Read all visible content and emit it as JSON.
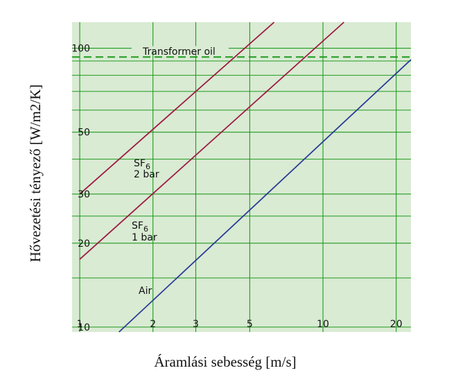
{
  "chart_data": {
    "type": "line",
    "xlabel": "Áramlási sebesség [m/s]",
    "ylabel": "Hővezetési tényező [W/m2/K]",
    "x_scale": "log",
    "y_scale": "log",
    "xlim": [
      0.93,
      23
    ],
    "ylim": [
      9.6,
      124
    ],
    "x_ticks": [
      1,
      2,
      3,
      5,
      10,
      20
    ],
    "x_tick_labels": [
      "1",
      "2",
      "3",
      "5",
      "10",
      "20"
    ],
    "y_ticks": [
      10,
      20,
      30,
      50,
      100
    ],
    "y_tick_labels": [
      "10",
      "20",
      "30",
      "50",
      "100"
    ],
    "grid": true,
    "background_color": "#d9ebd3",
    "grid_color": "#1f9a1f",
    "series": [
      {
        "id": "sf6_2bar",
        "label": {
          "base": "SF",
          "sub": "6",
          "pressure": "2 bar"
        },
        "color": "#9e1b45",
        "x": [
          1,
          6.3
        ],
        "y": [
          30,
          124
        ]
      },
      {
        "id": "sf6_1bar",
        "label": {
          "base": "SF",
          "sub": "6",
          "pressure": "1 bar"
        },
        "color": "#9e1b45",
        "x": [
          1,
          12.2
        ],
        "y": [
          17.5,
          124
        ]
      },
      {
        "id": "air",
        "label": {
          "text": "Air"
        },
        "color": "#2b3d96",
        "x": [
          1.45,
          23
        ],
        "y": [
          9.6,
          91
        ]
      },
      {
        "id": "transformer_oil",
        "label": {
          "text": "Transformer oil"
        },
        "color": "#1f9a1f",
        "style": "dashed",
        "x": [
          0.93,
          23
        ],
        "y": [
          93,
          93
        ]
      }
    ]
  }
}
